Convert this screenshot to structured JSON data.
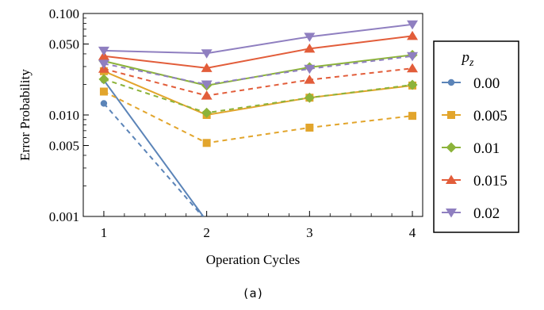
{
  "chart_data": {
    "type": "line",
    "ylabel": "Error Probability",
    "xlabel": "Operation Cycles",
    "caption": "(a)",
    "yscale": "log",
    "ylim": [
      0.001,
      0.1
    ],
    "xlim": [
      0.8,
      4.1
    ],
    "x": [
      1,
      2,
      3,
      4
    ],
    "xticks": [
      "1",
      "2",
      "3",
      "4"
    ],
    "yticks": [
      {
        "value": 0.1,
        "label": "0.100"
      },
      {
        "value": 0.05,
        "label": "0.050"
      },
      {
        "value": 0.01,
        "label": "0.010"
      },
      {
        "value": 0.005,
        "label": "0.005"
      },
      {
        "value": 0.001,
        "label": "0.001"
      }
    ],
    "legend": {
      "title_base": "p",
      "title_sub": "z",
      "placement": "right",
      "entries": [
        "0.00",
        "0.005",
        "0.01",
        "0.015",
        "0.02"
      ]
    },
    "series": [
      {
        "name": "0.00",
        "color": "#5b84b8",
        "marker": "circle",
        "style": "solid",
        "values": [
          0.022,
          0.0009,
          null,
          null
        ]
      },
      {
        "name": "0.00",
        "color": "#5b84b8",
        "marker": "circle",
        "style": "dashed",
        "values": [
          0.013,
          0.0009,
          null,
          null
        ]
      },
      {
        "name": "0.005",
        "color": "#e2a52c",
        "marker": "square",
        "style": "solid",
        "values": [
          0.027,
          0.01,
          0.0148,
          0.0195
        ]
      },
      {
        "name": "0.005",
        "color": "#e2a52c",
        "marker": "square",
        "style": "dashed",
        "values": [
          0.017,
          0.0053,
          0.0075,
          0.0098
        ]
      },
      {
        "name": "0.01",
        "color": "#8cb33a",
        "marker": "diamond",
        "style": "solid",
        "values": [
          0.034,
          0.0195,
          0.0295,
          0.039
        ]
      },
      {
        "name": "0.01",
        "color": "#8cb33a",
        "marker": "diamond",
        "style": "dashed",
        "values": [
          0.0225,
          0.0105,
          0.0148,
          0.0198
        ]
      },
      {
        "name": "0.015",
        "color": "#e25d3a",
        "marker": "triangle",
        "style": "solid",
        "values": [
          0.038,
          0.029,
          0.045,
          0.06
        ]
      },
      {
        "name": "0.015",
        "color": "#e25d3a",
        "marker": "triangle",
        "style": "dashed",
        "values": [
          0.0285,
          0.0155,
          0.0222,
          0.0288
        ]
      },
      {
        "name": "0.02",
        "color": "#8f7fc0",
        "marker": "triangle-down",
        "style": "solid",
        "values": [
          0.043,
          0.0405,
          0.059,
          0.078
        ]
      },
      {
        "name": "0.02",
        "color": "#8f7fc0",
        "marker": "triangle-down",
        "style": "dashed",
        "values": [
          0.032,
          0.02,
          0.0285,
          0.038
        ]
      }
    ]
  }
}
